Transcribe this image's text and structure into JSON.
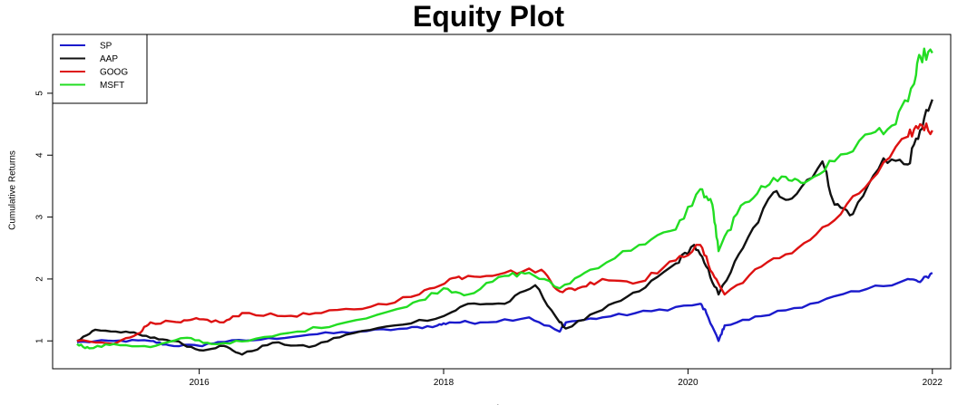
{
  "chart_data": {
    "type": "line",
    "title": "Equity Plot",
    "xlabel": "Time",
    "ylabel": "Cumulative Returns",
    "xlim": [
      2014.8,
      2022.15
    ],
    "ylim": [
      0.55,
      5.95
    ],
    "xticks": [
      2016,
      2018,
      2020,
      2022
    ],
    "xtick_labels": [
      "2016",
      "2018",
      "2020",
      "2022"
    ],
    "yticks": [
      1,
      2,
      3,
      4,
      5
    ],
    "ytick_labels": [
      "1",
      "2",
      "3",
      "4",
      "5"
    ],
    "legend_position": "top-left",
    "series": [
      {
        "name": "SP",
        "color": "#1a1acc",
        "x": [
          2015.0,
          2015.3,
          2015.6,
          2015.75,
          2016.0,
          2016.15,
          2016.5,
          2016.9,
          2017.3,
          2017.7,
          2017.95,
          2018.05,
          2018.3,
          2018.7,
          2018.95,
          2019.0,
          2019.3,
          2019.7,
          2020.1,
          2020.15,
          2020.25,
          2020.3,
          2020.6,
          2021.0,
          2021.4,
          2021.8,
          2021.9,
          2022.0
        ],
        "y": [
          0.98,
          1.0,
          1.0,
          0.93,
          0.92,
          0.98,
          1.02,
          1.1,
          1.15,
          1.2,
          1.25,
          1.3,
          1.3,
          1.38,
          1.15,
          1.3,
          1.38,
          1.48,
          1.6,
          1.45,
          1.0,
          1.25,
          1.4,
          1.6,
          1.8,
          2.0,
          1.95,
          2.1
        ]
      },
      {
        "name": "AAP",
        "color": "#111111",
        "x": [
          2015.0,
          2015.15,
          2015.4,
          2015.6,
          2015.8,
          2016.0,
          2016.2,
          2016.35,
          2016.6,
          2016.9,
          2017.2,
          2017.6,
          2018.0,
          2018.2,
          2018.5,
          2018.75,
          2018.95,
          2019.0,
          2019.3,
          2019.6,
          2019.9,
          2020.05,
          2020.15,
          2020.25,
          2020.45,
          2020.7,
          2020.85,
          2021.1,
          2021.2,
          2021.35,
          2021.6,
          2021.8,
          2021.9,
          2022.0
        ],
        "y": [
          1.0,
          1.18,
          1.15,
          1.05,
          1.0,
          0.85,
          0.92,
          0.78,
          0.97,
          0.9,
          1.1,
          1.25,
          1.4,
          1.6,
          1.6,
          1.9,
          1.3,
          1.2,
          1.5,
          1.8,
          2.25,
          2.55,
          2.2,
          1.75,
          2.5,
          3.4,
          3.3,
          3.9,
          3.2,
          3.05,
          3.95,
          3.85,
          4.4,
          4.9
        ]
      },
      {
        "name": "GOOG",
        "color": "#dd1111",
        "x": [
          2015.0,
          2015.3,
          2015.5,
          2015.6,
          2015.85,
          2016.0,
          2016.2,
          2016.35,
          2016.7,
          2017.0,
          2017.4,
          2017.8,
          2018.05,
          2018.2,
          2018.5,
          2018.8,
          2018.95,
          2019.1,
          2019.3,
          2019.6,
          2019.9,
          2020.1,
          2020.2,
          2020.3,
          2020.6,
          2020.9,
          2021.2,
          2021.5,
          2021.8,
          2021.9,
          2022.0
        ],
        "y": [
          1.0,
          0.95,
          1.12,
          1.3,
          1.3,
          1.35,
          1.3,
          1.45,
          1.4,
          1.45,
          1.55,
          1.75,
          2.0,
          2.05,
          2.1,
          2.15,
          1.8,
          1.85,
          2.0,
          1.95,
          2.3,
          2.55,
          2.1,
          1.75,
          2.2,
          2.5,
          2.95,
          3.6,
          4.3,
          4.5,
          4.4
        ]
      },
      {
        "name": "MSFT",
        "color": "#22dd22",
        "x": [
          2015.0,
          2015.1,
          2015.3,
          2015.6,
          2015.9,
          2016.1,
          2016.4,
          2016.8,
          2017.2,
          2017.7,
          2018.0,
          2018.2,
          2018.5,
          2018.7,
          2018.95,
          2019.2,
          2019.6,
          2019.9,
          2020.1,
          2020.2,
          2020.25,
          2020.4,
          2020.6,
          2020.8,
          2020.95,
          2021.2,
          2021.5,
          2021.7,
          2021.85,
          2021.9,
          2022.0
        ],
        "y": [
          0.95,
          0.88,
          0.95,
          0.9,
          1.05,
          0.95,
          1.0,
          1.15,
          1.3,
          1.55,
          1.85,
          1.75,
          2.05,
          2.1,
          1.85,
          2.15,
          2.55,
          2.8,
          3.45,
          3.2,
          2.45,
          3.05,
          3.5,
          3.65,
          3.55,
          3.9,
          4.35,
          4.5,
          5.15,
          5.6,
          5.65
        ]
      }
    ]
  }
}
